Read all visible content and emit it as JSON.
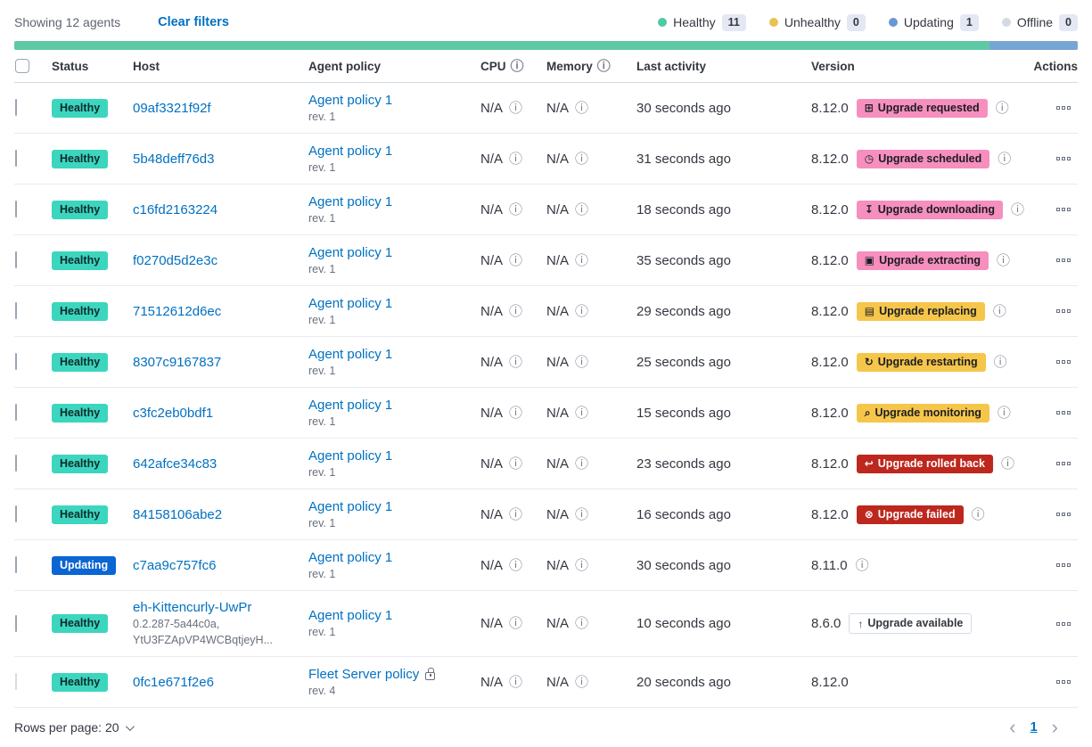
{
  "colors": {
    "link": "#0071c2",
    "healthy_bg": "#3cd6be",
    "updating_bg": "#0b65d2",
    "pink_bg": "#f68fbe",
    "yellow_bg": "#f6c64b",
    "red_bg": "#bd271e",
    "bar_green": "#5fc9a6",
    "bar_blue": "#76a6d4",
    "dot_healthy": "#4fc9a8",
    "dot_unhealthy": "#e7c34f",
    "dot_updating": "#6897d2",
    "dot_offline": "#d3dae6"
  },
  "icons": {
    "info": "ⓘ",
    "calendar": "⊞",
    "clock": "◷",
    "download": "↧",
    "package": "▣",
    "document": "▤",
    "refresh": "↻",
    "inspect": "⌕",
    "return": "↩",
    "cross": "⊗",
    "arrow-up": "↑"
  },
  "toolbar": {
    "showing": "Showing 12 agents",
    "clear_filters": "Clear filters"
  },
  "legend": [
    {
      "label": "Healthy",
      "count": "11",
      "type": "healthy"
    },
    {
      "label": "Unhealthy",
      "count": "0",
      "type": "unhealthy"
    },
    {
      "label": "Updating",
      "count": "1",
      "type": "updating"
    },
    {
      "label": "Offline",
      "count": "0",
      "type": "offline"
    }
  ],
  "progress": {
    "segments": [
      {
        "color": "bar_green",
        "fraction": 0.917
      },
      {
        "color": "bar_blue",
        "fraction": 0.083
      }
    ]
  },
  "table": {
    "headers": {
      "status": "Status",
      "host": "Host",
      "policy": "Agent policy",
      "cpu": "CPU",
      "memory": "Memory",
      "last_activity": "Last activity",
      "version": "Version",
      "actions": "Actions"
    }
  },
  "rows": [
    {
      "status": {
        "label": "Healthy",
        "type": "healthy"
      },
      "host": {
        "name": "09af3321f92f"
      },
      "policy": {
        "name": "Agent policy 1",
        "rev": "rev. 1",
        "lock": false
      },
      "cpu": "N/A",
      "memory": "N/A",
      "last_activity": "30 seconds ago",
      "version": "8.12.0",
      "upgrade_badge": {
        "label": "Upgrade requested",
        "type": "pink",
        "icon": "calendar"
      },
      "version_info": true,
      "checkbox_disabled": false
    },
    {
      "status": {
        "label": "Healthy",
        "type": "healthy"
      },
      "host": {
        "name": "5b48deff76d3"
      },
      "policy": {
        "name": "Agent policy 1",
        "rev": "rev. 1",
        "lock": false
      },
      "cpu": "N/A",
      "memory": "N/A",
      "last_activity": "31 seconds ago",
      "version": "8.12.0",
      "upgrade_badge": {
        "label": "Upgrade scheduled",
        "type": "pink",
        "icon": "clock"
      },
      "version_info": true,
      "checkbox_disabled": false
    },
    {
      "status": {
        "label": "Healthy",
        "type": "healthy"
      },
      "host": {
        "name": "c16fd2163224"
      },
      "policy": {
        "name": "Agent policy 1",
        "rev": "rev. 1",
        "lock": false
      },
      "cpu": "N/A",
      "memory": "N/A",
      "last_activity": "18 seconds ago",
      "version": "8.12.0",
      "upgrade_badge": {
        "label": "Upgrade downloading",
        "type": "pink",
        "icon": "download"
      },
      "version_info": true,
      "checkbox_disabled": false
    },
    {
      "status": {
        "label": "Healthy",
        "type": "healthy"
      },
      "host": {
        "name": "f0270d5d2e3c"
      },
      "policy": {
        "name": "Agent policy 1",
        "rev": "rev. 1",
        "lock": false
      },
      "cpu": "N/A",
      "memory": "N/A",
      "last_activity": "35 seconds ago",
      "version": "8.12.0",
      "upgrade_badge": {
        "label": "Upgrade extracting",
        "type": "pink",
        "icon": "package"
      },
      "version_info": true,
      "checkbox_disabled": false
    },
    {
      "status": {
        "label": "Healthy",
        "type": "healthy"
      },
      "host": {
        "name": "71512612d6ec"
      },
      "policy": {
        "name": "Agent policy 1",
        "rev": "rev. 1",
        "lock": false
      },
      "cpu": "N/A",
      "memory": "N/A",
      "last_activity": "29 seconds ago",
      "version": "8.12.0",
      "upgrade_badge": {
        "label": "Upgrade replacing",
        "type": "yellow",
        "icon": "document"
      },
      "version_info": true,
      "checkbox_disabled": false
    },
    {
      "status": {
        "label": "Healthy",
        "type": "healthy"
      },
      "host": {
        "name": "8307c9167837"
      },
      "policy": {
        "name": "Agent policy 1",
        "rev": "rev. 1",
        "lock": false
      },
      "cpu": "N/A",
      "memory": "N/A",
      "last_activity": "25 seconds ago",
      "version": "8.12.0",
      "upgrade_badge": {
        "label": "Upgrade restarting",
        "type": "yellow",
        "icon": "refresh"
      },
      "version_info": true,
      "checkbox_disabled": false
    },
    {
      "status": {
        "label": "Healthy",
        "type": "healthy"
      },
      "host": {
        "name": "c3fc2eb0bdf1"
      },
      "policy": {
        "name": "Agent policy 1",
        "rev": "rev. 1",
        "lock": false
      },
      "cpu": "N/A",
      "memory": "N/A",
      "last_activity": "15 seconds ago",
      "version": "8.12.0",
      "upgrade_badge": {
        "label": "Upgrade monitoring",
        "type": "yellow",
        "icon": "inspect"
      },
      "version_info": true,
      "checkbox_disabled": false
    },
    {
      "status": {
        "label": "Healthy",
        "type": "healthy"
      },
      "host": {
        "name": "642afce34c83"
      },
      "policy": {
        "name": "Agent policy 1",
        "rev": "rev. 1",
        "lock": false
      },
      "cpu": "N/A",
      "memory": "N/A",
      "last_activity": "23 seconds ago",
      "version": "8.12.0",
      "upgrade_badge": {
        "label": "Upgrade rolled back",
        "type": "red",
        "icon": "return"
      },
      "version_info": true,
      "checkbox_disabled": false
    },
    {
      "status": {
        "label": "Healthy",
        "type": "healthy"
      },
      "host": {
        "name": "84158106abe2"
      },
      "policy": {
        "name": "Agent policy 1",
        "rev": "rev. 1",
        "lock": false
      },
      "cpu": "N/A",
      "memory": "N/A",
      "last_activity": "16 seconds ago",
      "version": "8.12.0",
      "upgrade_badge": {
        "label": "Upgrade failed",
        "type": "red",
        "icon": "cross"
      },
      "version_info": true,
      "checkbox_disabled": false
    },
    {
      "status": {
        "label": "Updating",
        "type": "updating"
      },
      "host": {
        "name": "c7aa9c757fc6"
      },
      "policy": {
        "name": "Agent policy 1",
        "rev": "rev. 1",
        "lock": false
      },
      "cpu": "N/A",
      "memory": "N/A",
      "last_activity": "30 seconds ago",
      "version": "8.11.0",
      "upgrade_badge": null,
      "version_info": true,
      "checkbox_disabled": false
    },
    {
      "status": {
        "label": "Healthy",
        "type": "healthy"
      },
      "host": {
        "name": "eh-Kittencurly-UwPr",
        "sub": [
          "0.2.287-5a44c0a,",
          "YtU3FZApVP4WCBqtjeyH..."
        ]
      },
      "policy": {
        "name": "Agent policy 1",
        "rev": "rev. 1",
        "lock": false
      },
      "cpu": "N/A",
      "memory": "N/A",
      "last_activity": "10 seconds ago",
      "version": "8.6.0",
      "upgrade_badge": {
        "label": "Upgrade available",
        "type": "outline",
        "icon": "arrow-up"
      },
      "version_info": false,
      "checkbox_disabled": false
    },
    {
      "status": {
        "label": "Healthy",
        "type": "healthy"
      },
      "host": {
        "name": "0fc1e671f2e6"
      },
      "policy": {
        "name": "Fleet Server policy",
        "rev": "rev. 4",
        "lock": true
      },
      "cpu": "N/A",
      "memory": "N/A",
      "last_activity": "20 seconds ago",
      "version": "8.12.0",
      "upgrade_badge": null,
      "version_info": false,
      "checkbox_disabled": true
    }
  ],
  "footer": {
    "rows_per_page": "Rows per page: 20",
    "page": "1"
  }
}
